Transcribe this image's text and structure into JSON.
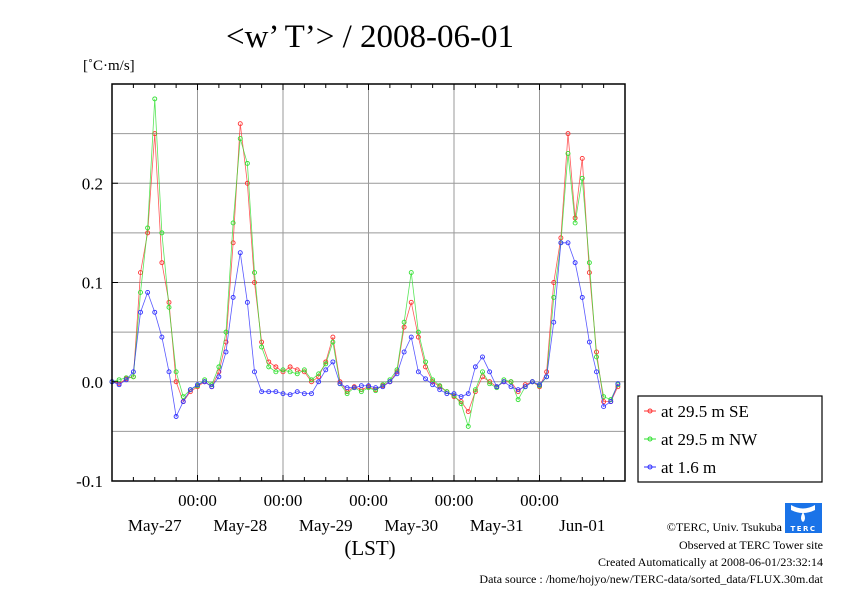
{
  "chart_data": {
    "type": "line",
    "title": "<w’ T’> / 2008-06-01",
    "ylabel": "[˚C·m/s]",
    "xlabel": "(LST)",
    "ylim": [
      -0.1,
      0.3
    ],
    "xlim_hours": [
      0,
      144
    ],
    "y_ticks": [
      {
        "v": 0.2,
        "label": "0.2"
      },
      {
        "v": 0.1,
        "label": "0.1"
      },
      {
        "v": 0.0,
        "label": "0.0"
      },
      {
        "v": -0.1,
        "label": "-0.1"
      }
    ],
    "x_time_ticks": [
      {
        "h": 24,
        "label": "00:00"
      },
      {
        "h": 48,
        "label": "00:00"
      },
      {
        "h": 72,
        "label": "00:00"
      },
      {
        "h": 96,
        "label": "00:00"
      },
      {
        "h": 120,
        "label": "00:00"
      }
    ],
    "x_date_labels": [
      {
        "h": 12,
        "label": "May-27"
      },
      {
        "h": 36,
        "label": "May-28"
      },
      {
        "h": 60,
        "label": "May-29"
      },
      {
        "h": 84,
        "label": "May-30"
      },
      {
        "h": 108,
        "label": "May-31"
      },
      {
        "h": 132,
        "label": "Jun-01"
      }
    ],
    "grid": true,
    "legend_placement": "right",
    "x_step_hours": 2,
    "series": [
      {
        "name": "at 29.5 m SE",
        "color": "#ff3030",
        "values": [
          0,
          -0.002,
          0.003,
          0.005,
          0.11,
          0.15,
          0.25,
          0.12,
          0.08,
          0.0,
          -0.02,
          -0.01,
          -0.005,
          0.0,
          -0.005,
          0.01,
          0.04,
          0.14,
          0.26,
          0.2,
          0.1,
          0.04,
          0.02,
          0.015,
          0.01,
          0.015,
          0.012,
          0.01,
          0.0,
          0.005,
          0.02,
          0.045,
          0.0,
          -0.01,
          -0.005,
          -0.008,
          -0.005,
          -0.008,
          -0.004,
          0.0,
          0.01,
          0.055,
          0.08,
          0.045,
          0.015,
          0.0,
          -0.005,
          -0.01,
          -0.015,
          -0.02,
          -0.03,
          -0.01,
          0.005,
          0.0,
          -0.005,
          0.0,
          0.0,
          -0.01,
          -0.003,
          0.0,
          -0.005,
          0.01,
          0.1,
          0.145,
          0.25,
          0.165,
          0.225,
          0.11,
          0.03,
          -0.02,
          -0.02,
          -0.005
        ]
      },
      {
        "name": "at 29.5 m NW",
        "color": "#30e030",
        "values": [
          0,
          0.002,
          0.004,
          0.005,
          0.09,
          0.155,
          0.285,
          0.15,
          0.075,
          0.01,
          -0.015,
          -0.008,
          -0.004,
          0.002,
          -0.003,
          0.015,
          0.05,
          0.16,
          0.245,
          0.22,
          0.11,
          0.035,
          0.015,
          0.01,
          0.012,
          0.01,
          0.008,
          0.012,
          0.002,
          0.008,
          0.018,
          0.04,
          -0.002,
          -0.012,
          -0.006,
          -0.01,
          -0.006,
          -0.009,
          -0.003,
          0.002,
          0.012,
          0.06,
          0.11,
          0.05,
          0.02,
          0.002,
          -0.004,
          -0.01,
          -0.014,
          -0.022,
          -0.045,
          -0.008,
          0.01,
          -0.002,
          -0.006,
          0.002,
          0.0,
          -0.018,
          -0.005,
          0.0,
          -0.004,
          0.005,
          0.085,
          0.14,
          0.23,
          0.16,
          0.205,
          0.12,
          0.025,
          -0.015,
          -0.018,
          -0.003
        ]
      },
      {
        "name": "at 1.6 m",
        "color": "#3030ff",
        "values": [
          0,
          -0.003,
          0.002,
          0.01,
          0.07,
          0.09,
          0.07,
          0.045,
          0.01,
          -0.035,
          -0.02,
          -0.008,
          -0.003,
          0.0,
          -0.005,
          0.005,
          0.03,
          0.085,
          0.13,
          0.08,
          0.01,
          -0.01,
          -0.01,
          -0.01,
          -0.012,
          -0.013,
          -0.01,
          -0.012,
          -0.012,
          0.0,
          0.012,
          0.02,
          -0.002,
          -0.006,
          -0.006,
          -0.004,
          -0.004,
          -0.006,
          -0.005,
          0.0,
          0.008,
          0.03,
          0.045,
          0.01,
          0.003,
          -0.003,
          -0.008,
          -0.012,
          -0.012,
          -0.015,
          -0.012,
          0.015,
          0.025,
          0.01,
          -0.005,
          0.0,
          -0.005,
          -0.008,
          -0.005,
          0.0,
          -0.003,
          0.005,
          0.06,
          0.14,
          0.14,
          0.12,
          0.085,
          0.04,
          0.01,
          -0.025,
          -0.02,
          -0.002
        ]
      }
    ]
  },
  "footer": {
    "copyright": "©TERC, Univ. Tsukuba",
    "observed": "Observed at TERC Tower site",
    "created": "Created Automatically at 2008-06-01/23:32:14",
    "source": "Data source : /home/hojyo/new/TERC-data/sorted_data/FLUX.30m.dat",
    "logo_text": "TERC"
  }
}
